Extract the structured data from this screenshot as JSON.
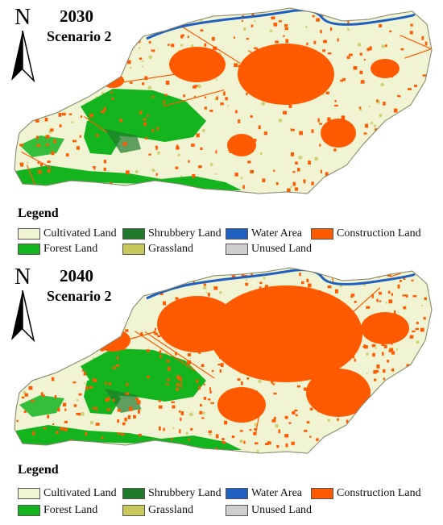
{
  "panels": [
    {
      "id": "top",
      "year": "2030",
      "scenario": "Scenario 2",
      "north_label": "N",
      "legend_title": "Legend",
      "construction_extent": "moderate"
    },
    {
      "id": "bottom",
      "year": "2040",
      "scenario": "Scenario 2",
      "north_label": "N",
      "legend_title": "Legend",
      "construction_extent": "extensive"
    }
  ],
  "legend": {
    "items": [
      {
        "key": "cultivated",
        "label": "Cultivated Land",
        "color": "#f0f4d2"
      },
      {
        "key": "shrubbery",
        "label": "Shrubbery Land",
        "color": "#1f7a2e"
      },
      {
        "key": "water",
        "label": "Water Area",
        "color": "#1f5fbf"
      },
      {
        "key": "construction",
        "label": "Construction Land",
        "color": "#ff5a00"
      },
      {
        "key": "forest",
        "label": "Forest Land",
        "color": "#14b41e"
      },
      {
        "key": "grassland",
        "label": "Grassland",
        "color": "#c8c85a"
      },
      {
        "key": "unused",
        "label": "Unused Land",
        "color": "#cfcfcf"
      }
    ]
  }
}
